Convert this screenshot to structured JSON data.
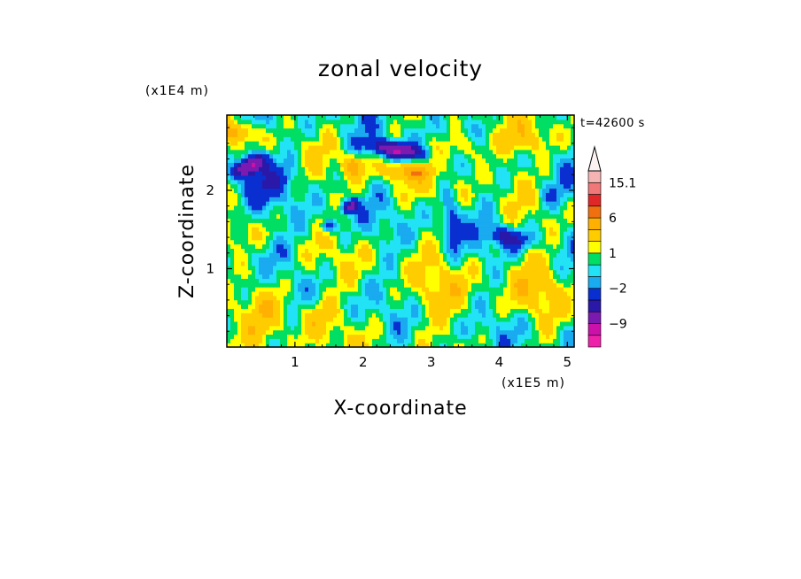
{
  "chart_data": {
    "type": "heatmap",
    "title": "zonal velocity",
    "xlabel": "X-coordinate",
    "ylabel": "Z-coordinate",
    "x_scale_label": "(x1E5 m)",
    "y_scale_label": "(x1E4 m)",
    "time_label": "t=42600 s",
    "xlim": [
      0,
      5.1
    ],
    "ylim": [
      0,
      2.96
    ],
    "x_ticks": [
      {
        "value": 1,
        "label": "1"
      },
      {
        "value": 2,
        "label": "2"
      },
      {
        "value": 3,
        "label": "3"
      },
      {
        "value": 4,
        "label": "4"
      },
      {
        "value": 5,
        "label": "5"
      }
    ],
    "y_ticks": [
      {
        "value": 1,
        "label": "1"
      },
      {
        "value": 2,
        "label": "2"
      }
    ],
    "grid": false,
    "colorbar": {
      "levels": [
        -15,
        -12,
        -9,
        -6,
        -4,
        -2,
        -1,
        0,
        1,
        2,
        4,
        6,
        9,
        12,
        15.1
      ],
      "colors": [
        "#ee22aa",
        "#cc11aa",
        "#7a1ab0",
        "#2a18a8",
        "#0a2fd0",
        "#19aaf0",
        "#22e2f6",
        "#00de64",
        "#ffff00",
        "#ffcc00",
        "#ffb000",
        "#f07010",
        "#e02828",
        "#f07878",
        "#f4b4b4"
      ],
      "labels": [
        {
          "value": 15.1,
          "label": "15.1"
        },
        {
          "value": 6,
          "label": "6"
        },
        {
          "value": 1,
          "label": "1"
        },
        {
          "value": -2,
          "label": "−2"
        },
        {
          "value": -9,
          "label": "−9"
        }
      ],
      "extend_max_arrow": true
    },
    "features": [
      {
        "x": 0.35,
        "z": 2.32,
        "u": -11,
        "rx": 0.25,
        "rz": 0.12,
        "angle": 22
      },
      {
        "x": 2.5,
        "z": 2.52,
        "u": -10,
        "rx": 0.38,
        "rz": 0.1,
        "angle": -8
      },
      {
        "x": 1.8,
        "z": 1.8,
        "u": -7,
        "rx": 0.14,
        "rz": 0.08,
        "angle": 20
      },
      {
        "x": 1.5,
        "z": 1.55,
        "u": -5,
        "rx": 0.12,
        "rz": 0.08,
        "angle": 20
      },
      {
        "x": 4.15,
        "z": 1.4,
        "u": -5,
        "rx": 0.3,
        "rz": 0.12,
        "angle": -10
      },
      {
        "x": 3.3,
        "z": 1.6,
        "u": -4,
        "rx": 0.12,
        "rz": 0.35,
        "angle": 10
      },
      {
        "x": 0.6,
        "z": 2.1,
        "u": -3,
        "rx": 0.45,
        "rz": 0.2,
        "angle": 20
      },
      {
        "x": 1.85,
        "z": 2.32,
        "u": 5,
        "rx": 0.14,
        "rz": 0.12,
        "angle": 0
      },
      {
        "x": 2.6,
        "z": 2.25,
        "u": 4,
        "rx": 0.35,
        "rz": 0.12,
        "angle": 0
      },
      {
        "x": 0.2,
        "z": 2.75,
        "u": 4,
        "rx": 0.25,
        "rz": 0.12,
        "angle": 0
      },
      {
        "x": 3.5,
        "z": 2.55,
        "u": 3,
        "rx": 0.3,
        "rz": 0.2,
        "angle": 0
      },
      {
        "x": 4.4,
        "z": 2.65,
        "u": 3,
        "rx": 0.45,
        "rz": 0.2,
        "angle": 0
      },
      {
        "x": 0.6,
        "z": 0.55,
        "u": 3,
        "rx": 0.3,
        "rz": 0.3,
        "angle": 0
      },
      {
        "x": 1.3,
        "z": 0.4,
        "u": 2.5,
        "rx": 0.3,
        "rz": 0.25,
        "angle": 0
      },
      {
        "x": 3.1,
        "z": 0.6,
        "u": 2,
        "rx": 0.45,
        "rz": 0.35,
        "angle": 0
      },
      {
        "x": 4.5,
        "z": 0.8,
        "u": 2,
        "rx": 0.4,
        "rz": 0.4,
        "angle": 0
      },
      {
        "x": 0.5,
        "z": 1.2,
        "u": -1.5,
        "rx": 0.5,
        "rz": 0.2,
        "angle": 0
      },
      {
        "x": 4.8,
        "z": 1.95,
        "u": -2,
        "rx": 0.3,
        "rz": 0.2,
        "angle": 0
      }
    ]
  }
}
